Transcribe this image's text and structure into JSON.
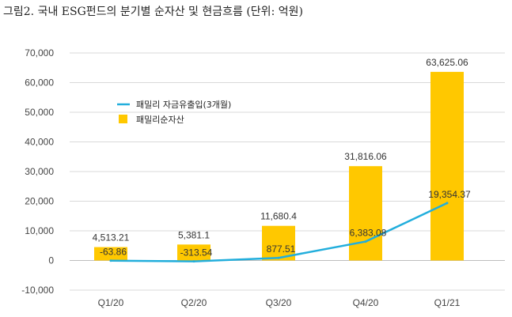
{
  "title": "그림2. 국내 ESG펀드의 분기별 순자산 및 현금흐름 (단위: 억원)",
  "colors": {
    "bar": "#FFC800",
    "line": "#22AEDC",
    "grid": "#d9d9d9",
    "axis": "#bdbdbd"
  },
  "chart_data": {
    "type": "bar",
    "categories": [
      "Q1/20",
      "Q2/20",
      "Q3/20",
      "Q4/20",
      "Q1/21"
    ],
    "ylim": [
      -10000,
      70000
    ],
    "yticks": [
      -10000,
      0,
      10000,
      20000,
      30000,
      40000,
      50000,
      60000,
      70000
    ],
    "ytick_labels": [
      "-10,000",
      "0",
      "10,000",
      "20,000",
      "30,000",
      "40,000",
      "50,000",
      "60,000",
      "70,000"
    ],
    "grid": true,
    "legend_position": "upper-left",
    "series": [
      {
        "name": "패밀리순자산",
        "type": "bar",
        "values": [
          4513.21,
          5381.1,
          11680.4,
          31816.06,
          63625.06
        ],
        "labels": [
          "4,513.21",
          "5,381.1",
          "11,680.4",
          "31,816.06",
          "63,625.06"
        ]
      },
      {
        "name": "패밀리 자금유출입(3개월)",
        "type": "line",
        "values": [
          -63.86,
          -313.54,
          877.51,
          6383.08,
          19354.37
        ],
        "labels": [
          "-63.86",
          "-313.54",
          "877.51",
          "6,383.08",
          "19,354.37"
        ]
      }
    ]
  }
}
